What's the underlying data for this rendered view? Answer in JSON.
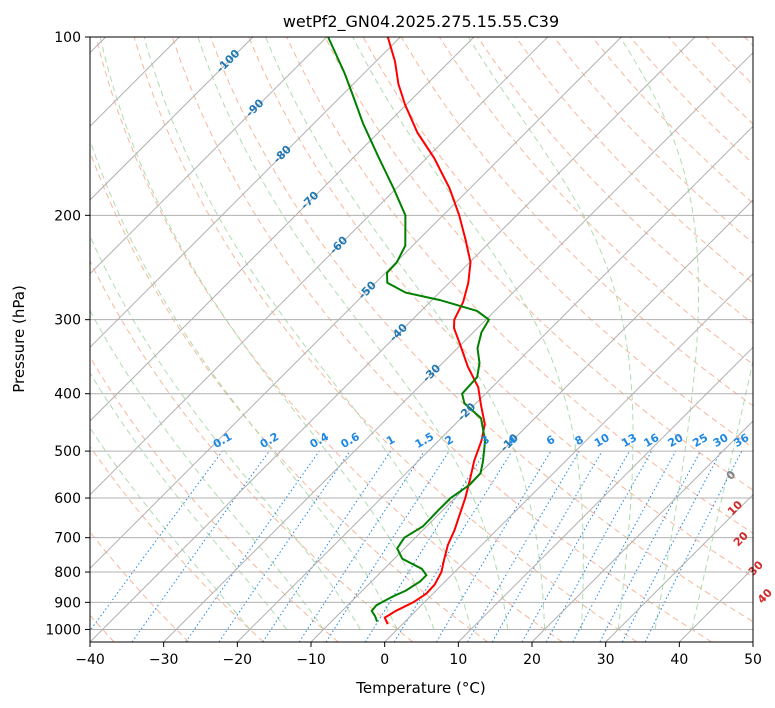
{
  "chart_data": {
    "type": "skew-t",
    "title": "wetPf2_GN04.2025.275.15.55.C39",
    "xlabel": "Temperature (°C)",
    "ylabel": "Pressure (hPa)",
    "x_ticks": [
      -40,
      -30,
      -20,
      -10,
      0,
      10,
      20,
      30,
      40,
      50
    ],
    "x_tick_labels": [
      "−40",
      "−30",
      "−20",
      "−10",
      "0",
      "10",
      "20",
      "30",
      "40",
      "50"
    ],
    "y_ticks": [
      100,
      200,
      300,
      400,
      500,
      600,
      700,
      800,
      900,
      1000
    ],
    "y_tick_labels": [
      "100",
      "200",
      "300",
      "400",
      "500",
      "600",
      "700",
      "800",
      "900",
      "1000"
    ],
    "xlim": [
      -40,
      50
    ],
    "ylim": [
      1050,
      100
    ],
    "y_scale": "log",
    "grid": true,
    "colors": {
      "temperature": "#ff0000",
      "dewpoint": "#008000",
      "isotherm_labels": "#1f77b4",
      "mixing_ratio": "#1e88e5",
      "moist_adiabat_labels": "#d62728",
      "grid": "#b0b0b0",
      "dry_adiabat": "#f4a582",
      "moist_adiabat": "#a6d8a6"
    },
    "series": [
      {
        "color": "red",
        "points": [
          {
            "p": 980,
            "t": -2.0
          },
          {
            "p": 955,
            "t": -3.3
          },
          {
            "p": 930,
            "t": -2.7
          },
          {
            "p": 900,
            "t": -1.5
          },
          {
            "p": 870,
            "t": -0.9
          },
          {
            "p": 840,
            "t": -1.0
          },
          {
            "p": 800,
            "t": -1.8
          },
          {
            "p": 760,
            "t": -3.2
          },
          {
            "p": 720,
            "t": -4.6
          },
          {
            "p": 680,
            "t": -5.7
          },
          {
            "p": 640,
            "t": -7.1
          },
          {
            "p": 600,
            "t": -8.6
          },
          {
            "p": 560,
            "t": -10.4
          },
          {
            "p": 520,
            "t": -12.4
          },
          {
            "p": 480,
            "t": -14.2
          },
          {
            "p": 450,
            "t": -16.0
          },
          {
            "p": 420,
            "t": -18.9
          },
          {
            "p": 390,
            "t": -21.9
          },
          {
            "p": 360,
            "t": -26.1
          },
          {
            "p": 330,
            "t": -30.2
          },
          {
            "p": 310,
            "t": -33.2
          },
          {
            "p": 300,
            "t": -34.3
          },
          {
            "p": 280,
            "t": -35.5
          },
          {
            "p": 260,
            "t": -37.4
          },
          {
            "p": 240,
            "t": -39.9
          },
          {
            "p": 220,
            "t": -43.6
          },
          {
            "p": 200,
            "t": -47.8
          },
          {
            "p": 180,
            "t": -52.8
          },
          {
            "p": 160,
            "t": -59.0
          },
          {
            "p": 145,
            "t": -64.7
          },
          {
            "p": 130,
            "t": -70.2
          },
          {
            "p": 120,
            "t": -73.9
          },
          {
            "p": 110,
            "t": -77.4
          },
          {
            "p": 100,
            "t": -81.7
          }
        ]
      },
      {
        "color": "green",
        "points": [
          {
            "p": 970,
            "t": -3.8
          },
          {
            "p": 950,
            "t": -4.8
          },
          {
            "p": 930,
            "t": -6.0
          },
          {
            "p": 910,
            "t": -6.1
          },
          {
            "p": 880,
            "t": -5.1
          },
          {
            "p": 860,
            "t": -4.1
          },
          {
            "p": 830,
            "t": -3.4
          },
          {
            "p": 810,
            "t": -3.4
          },
          {
            "p": 790,
            "t": -4.9
          },
          {
            "p": 760,
            "t": -8.9
          },
          {
            "p": 730,
            "t": -11.0
          },
          {
            "p": 700,
            "t": -11.5
          },
          {
            "p": 670,
            "t": -10.5
          },
          {
            "p": 630,
            "t": -10.6
          },
          {
            "p": 600,
            "t": -10.6
          },
          {
            "p": 570,
            "t": -9.8
          },
          {
            "p": 545,
            "t": -9.9
          },
          {
            "p": 520,
            "t": -11.2
          },
          {
            "p": 480,
            "t": -13.7
          },
          {
            "p": 440,
            "t": -17.3
          },
          {
            "p": 415,
            "t": -21.6
          },
          {
            "p": 400,
            "t": -23.2
          },
          {
            "p": 375,
            "t": -23.4
          },
          {
            "p": 355,
            "t": -25.0
          },
          {
            "p": 335,
            "t": -27.3
          },
          {
            "p": 315,
            "t": -28.9
          },
          {
            "p": 300,
            "t": -29.6
          },
          {
            "p": 290,
            "t": -32.4
          },
          {
            "p": 278,
            "t": -38.9
          },
          {
            "p": 270,
            "t": -44.6
          },
          {
            "p": 260,
            "t": -48.4
          },
          {
            "p": 250,
            "t": -49.8
          },
          {
            "p": 240,
            "t": -49.9
          },
          {
            "p": 225,
            "t": -51.0
          },
          {
            "p": 200,
            "t": -55.1
          },
          {
            "p": 180,
            "t": -60.4
          },
          {
            "p": 160,
            "t": -66.5
          },
          {
            "p": 140,
            "t": -73.3
          },
          {
            "p": 125,
            "t": -78.7
          },
          {
            "p": 115,
            "t": -82.7
          },
          {
            "p": 100,
            "t": -89.8
          }
        ]
      }
    ],
    "isotherm_labels": [
      {
        "t": -100,
        "p": 110,
        "label": "-100"
      },
      {
        "t": -90,
        "p": 132,
        "label": "-90"
      },
      {
        "t": -80,
        "p": 158,
        "label": "-80"
      },
      {
        "t": -70,
        "p": 189,
        "label": "-70"
      },
      {
        "t": -60,
        "p": 225,
        "label": "-60"
      },
      {
        "t": -50,
        "p": 268,
        "label": "-50"
      },
      {
        "t": -40,
        "p": 316,
        "label": "-40"
      },
      {
        "t": -30,
        "p": 370,
        "label": "-30"
      },
      {
        "t": -20,
        "p": 430,
        "label": "-20"
      },
      {
        "t": -10,
        "p": 485,
        "label": "-10"
      }
    ],
    "mixing_ratio_labels": [
      "0.1",
      "0.2",
      "0.4",
      "0.6",
      "1",
      "1.5",
      "2",
      "3",
      "4",
      "6",
      "8",
      "10",
      "13",
      "16",
      "20",
      "25",
      "30",
      "36"
    ],
    "mixing_ratio_values": [
      0.1,
      0.2,
      0.4,
      0.6,
      1,
      1.5,
      2,
      3,
      4,
      6,
      8,
      10,
      13,
      16,
      20,
      25,
      30,
      36
    ],
    "moist_adiabat_labels": [
      {
        "label": "0",
        "t": 24.5,
        "p": 550
      },
      {
        "label": "10",
        "t": 29.5,
        "p": 625
      },
      {
        "label": "20",
        "t": 34.5,
        "p": 705
      },
      {
        "label": "30",
        "t": 40.5,
        "p": 790
      },
      {
        "label": "40",
        "t": 45.5,
        "p": 880
      }
    ]
  }
}
